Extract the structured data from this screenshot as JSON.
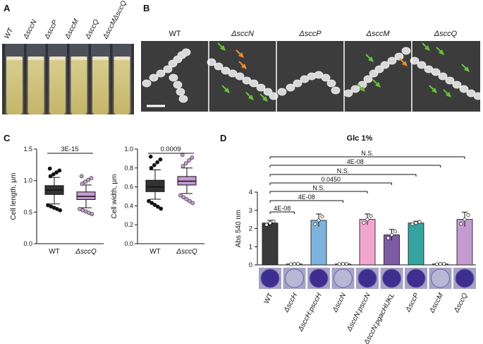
{
  "panel_a": {
    "letter": "A",
    "tubes": [
      "WT",
      "ΔsccN",
      "ΔsccP",
      "ΔsccM",
      "ΔsccQ",
      "ΔsccMΔsccQ"
    ]
  },
  "panel_b": {
    "letter": "B",
    "images": [
      "WT",
      "ΔsccN",
      "ΔsccP",
      "ΔsccM",
      "ΔsccQ"
    ]
  },
  "panel_c": {
    "letter": "C",
    "length_plot": {
      "ylabel": "Cell length, µm",
      "pvalue": "3E-15",
      "categories": [
        "WT",
        "ΔsccQ"
      ],
      "yticks": [
        "0.0",
        "0.5",
        "1.0",
        "1.5"
      ]
    },
    "width_plot": {
      "ylabel": "Cell width, µm",
      "pvalue": "0.0009",
      "categories": [
        "WT",
        "ΔsccQ"
      ],
      "yticks": [
        "0.0",
        "0.2",
        "0.4",
        "0.6",
        "0.8",
        "1.0"
      ]
    }
  },
  "panel_d": {
    "letter": "D",
    "title": "Glc 1%",
    "ylabel": "Abs 540 nm",
    "yticks": [
      "0",
      "1",
      "2",
      "3",
      "4"
    ],
    "comparisons": [
      "4E-08",
      "4E-08",
      "N.S.",
      "0.0450",
      "N.S.",
      "4E-08",
      "N.S."
    ],
    "categories": [
      "WT",
      "ΔsccH",
      "ΔsccH:psccH",
      "ΔsccN",
      "ΔsccN:psccN",
      "ΔsccN:pgacHIJKL",
      "ΔsccP",
      "ΔsccM",
      "ΔsccQ"
    ]
  },
  "chart_data": [
    {
      "type": "box",
      "ylabel": "Cell length, µm",
      "ylim": [
        0,
        1.5
      ],
      "categories": [
        "WT",
        "ΔsccQ"
      ],
      "boxes": [
        {
          "whisker_low": 0.63,
          "q1": 0.78,
          "median": 0.85,
          "q3": 0.92,
          "whisker_high": 1.05,
          "color": "#333333"
        },
        {
          "whisker_low": 0.57,
          "q1": 0.7,
          "median": 0.75,
          "q3": 0.82,
          "whisker_high": 0.93,
          "color": "#c49bd1"
        }
      ],
      "annotation": "3E-15"
    },
    {
      "type": "box",
      "ylabel": "Cell width, µm",
      "ylim": [
        0,
        1.0
      ],
      "categories": [
        "WT",
        "ΔsccQ"
      ],
      "boxes": [
        {
          "whisker_low": 0.47,
          "q1": 0.55,
          "median": 0.6,
          "q3": 0.67,
          "whisker_high": 0.78,
          "color": "#333333"
        },
        {
          "whisker_low": 0.53,
          "q1": 0.62,
          "median": 0.66,
          "q3": 0.71,
          "whisker_high": 0.8,
          "color": "#c49bd1"
        }
      ],
      "annotation": "0.0009"
    },
    {
      "type": "bar",
      "title": "Glc 1%",
      "ylabel": "Abs 540 nm",
      "ylim": [
        0,
        4
      ],
      "categories": [
        "WT",
        "ΔsccH",
        "ΔsccH:psccH",
        "ΔsccN",
        "ΔsccN:psccN",
        "ΔsccN:pgacHIJKL",
        "ΔsccP",
        "ΔsccM",
        "ΔsccQ"
      ],
      "values": [
        2.3,
        0.05,
        2.45,
        0.05,
        2.5,
        1.65,
        2.3,
        0.05,
        2.5
      ],
      "errors": [
        0.15,
        0.02,
        0.35,
        0.02,
        0.3,
        0.3,
        0.1,
        0.02,
        0.4
      ],
      "colors": [
        "#3a3a3a",
        "#9a9a9a",
        "#7fb3df",
        "#9a9a9a",
        "#f0a6cf",
        "#7e5aa3",
        "#35a3a0",
        "#9a9a9a",
        "#c49bd1"
      ]
    }
  ]
}
